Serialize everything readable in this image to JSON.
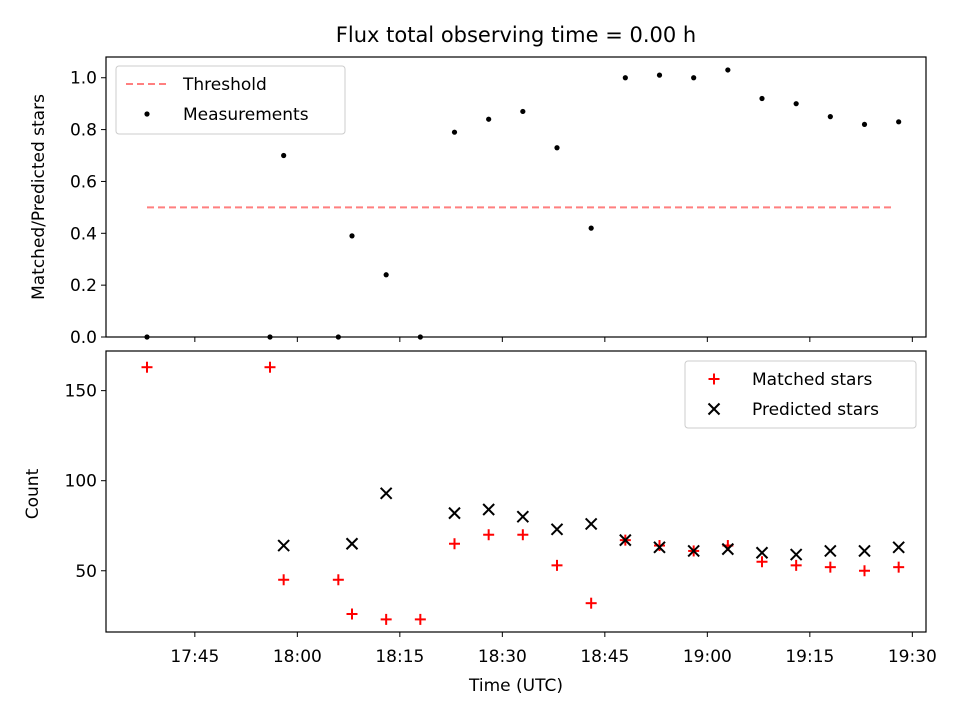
{
  "figure": {
    "title": "Flux total observing time = 0.00 h"
  },
  "colors": {
    "threshold": "#ff7f7f",
    "measurement": "#000000",
    "matched": "#ff0000",
    "predicted": "#000000"
  },
  "chart_data": [
    {
      "type": "line+scatter",
      "title": "Flux total observing time = 0.00 h",
      "ylabel": "Matched/Predicted stars",
      "xlabel": "",
      "xlim": [
        "17:32",
        "19:32"
      ],
      "ylim": [
        0,
        1.08
      ],
      "yticks": [
        "0.0",
        "0.2",
        "0.4",
        "0.6",
        "0.8",
        "1.0"
      ],
      "legend": {
        "position": "top-left",
        "entries": [
          "Threshold",
          "Measurements"
        ]
      },
      "threshold": {
        "name": "Threshold",
        "y": 0.5,
        "x_start": "17:38",
        "x_end": "19:27"
      },
      "measurements": {
        "name": "Measurements",
        "x": [
          "17:38",
          "17:56",
          "17:58",
          "18:06",
          "18:08",
          "18:13",
          "18:18",
          "18:23",
          "18:28",
          "18:33",
          "18:38",
          "18:43",
          "18:48",
          "18:53",
          "18:58",
          "19:03",
          "19:08",
          "19:13",
          "19:18",
          "19:23",
          "19:28"
        ],
        "y": [
          0.0,
          0.0,
          0.7,
          0.0,
          0.39,
          0.24,
          0.0,
          0.79,
          0.84,
          0.87,
          0.73,
          0.42,
          1.0,
          1.01,
          1.0,
          1.03,
          0.92,
          0.9,
          0.85,
          0.82,
          0.83
        ]
      }
    },
    {
      "type": "scatter",
      "xlabel": "Time (UTC)",
      "ylabel": "Count",
      "xlim": [
        "17:32",
        "19:32"
      ],
      "ylim": [
        16,
        172
      ],
      "xticks": [
        "17:45",
        "18:00",
        "18:15",
        "18:30",
        "18:45",
        "19:00",
        "19:15",
        "19:30"
      ],
      "yticks": [
        "50",
        "100",
        "150"
      ],
      "legend": {
        "position": "top-right",
        "entries": [
          "Matched stars",
          "Predicted stars"
        ]
      },
      "series": [
        {
          "name": "Matched stars",
          "marker": "+",
          "x": [
            "17:38",
            "17:56",
            "17:58",
            "18:06",
            "18:08",
            "18:13",
            "18:18",
            "18:23",
            "18:28",
            "18:33",
            "18:38",
            "18:43",
            "18:48",
            "18:53",
            "18:58",
            "19:03",
            "19:08",
            "19:13",
            "19:18",
            "19:23",
            "19:28"
          ],
          "y": [
            163,
            163,
            45,
            45,
            26,
            23,
            23,
            65,
            70,
            70,
            53,
            32,
            67,
            64,
            61,
            64,
            55,
            53,
            52,
            50,
            52
          ]
        },
        {
          "name": "Predicted stars",
          "marker": "x",
          "x": [
            "17:58",
            "18:08",
            "18:13",
            "18:23",
            "18:28",
            "18:33",
            "18:38",
            "18:43",
            "18:48",
            "18:53",
            "18:58",
            "19:03",
            "19:08",
            "19:13",
            "19:18",
            "19:23",
            "19:28"
          ],
          "y": [
            64,
            65,
            93,
            82,
            84,
            80,
            73,
            76,
            67,
            63,
            61,
            62,
            60,
            59,
            61,
            61,
            63
          ]
        }
      ]
    }
  ]
}
